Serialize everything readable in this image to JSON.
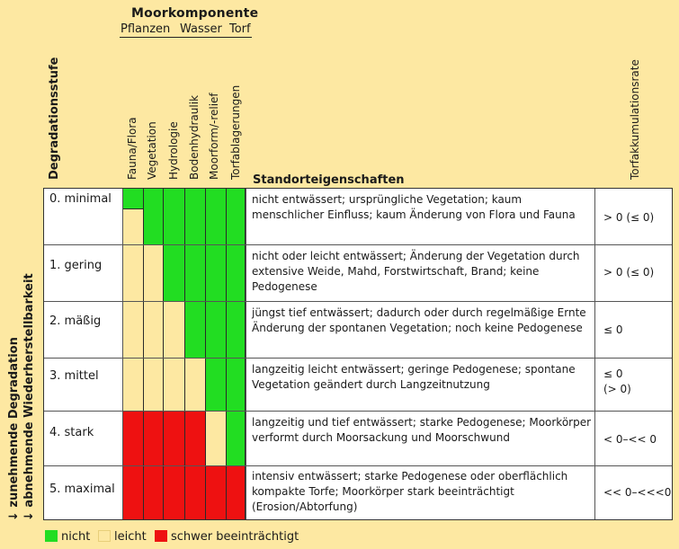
{
  "header": {
    "title": "Moorkomponente",
    "sub_pflanzen": "Pflanzen",
    "sub_wasser": "Wasser",
    "sub_torf": "Torf"
  },
  "columns": {
    "degradation": "Degradationsstufe",
    "params": [
      "Fauna/Flora",
      "Vegetation",
      "Hydrologie",
      "Bodenhydraulik",
      "Moorform/-relief",
      "Torfablagerungen"
    ],
    "site": "Standorteigenschaften",
    "rate": "Torfakkumulationsrate"
  },
  "side_labels": {
    "line1": "↓ zunehmende Degradation",
    "line2": "↓ abnehmende Wiederherstellbarkeit"
  },
  "colors": {
    "green": "#22dd22",
    "yellow": "#fde8a2",
    "red": "#ee1111"
  },
  "rows": [
    {
      "stage": "0. minimal",
      "desc": "nicht entwässert; ursprüngliche Vegetation; kaum menschlicher Einfluss; kaum Änderung von Flora und Fauna",
      "rate": "> 0 (≤ 0)"
    },
    {
      "stage": "1. gering",
      "desc": "nicht oder leicht entwässert; Änderung der Vegetation durch extensive Weide, Mahd, Forstwirtschaft, Brand; keine Pedogenese",
      "rate": "> 0 (≤ 0)"
    },
    {
      "stage": "2. mäßig",
      "desc": "jüngst tief entwässert; dadurch oder durch regelmäßige Ernte Änderung der spontanen Vegetation; noch keine Pedogenese",
      "rate": "≤ 0"
    },
    {
      "stage": "3. mittel",
      "desc": "langzeitig leicht entwässert; geringe Pedogenese; spontane Vegetation geändert durch Langzeitnutzung",
      "rate": "≤ 0\n(> 0)"
    },
    {
      "stage": "4. stark",
      "desc": "langzeitig und tief entwässert; starke Pedogenese; Moorkörper verformt durch Moorsackung und Moorschwund",
      "rate": "< 0–<< 0"
    },
    {
      "stage": "5. maximal",
      "desc": "intensiv entwässert; starke Pedogenese oder oberflächlich kompakte Torfe; Moorkörper stark beeinträchtigt (Erosion/Abtorfung)",
      "rate": "<< 0–<<<0"
    }
  ],
  "legend": {
    "nicht": "nicht",
    "leicht": "leicht",
    "schwer": "schwer beeinträchtigt"
  }
}
